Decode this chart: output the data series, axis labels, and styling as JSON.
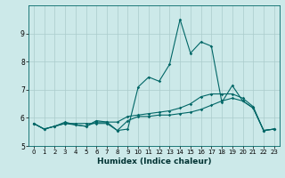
{
  "title": "",
  "xlabel": "Humidex (Indice chaleur)",
  "background_color": "#cce9e9",
  "grid_color": "#aacccc",
  "line_color": "#006666",
  "xlim": [
    -0.5,
    23.5
  ],
  "ylim": [
    5.0,
    10.0
  ],
  "yticks": [
    5,
    6,
    7,
    8,
    9
  ],
  "xticks": [
    0,
    1,
    2,
    3,
    4,
    5,
    6,
    7,
    8,
    9,
    10,
    11,
    12,
    13,
    14,
    15,
    16,
    17,
    18,
    19,
    20,
    21,
    22,
    23
  ],
  "series1_y": [
    5.8,
    5.6,
    5.7,
    5.8,
    5.8,
    5.8,
    5.8,
    5.8,
    5.55,
    5.9,
    6.05,
    6.05,
    6.1,
    6.1,
    6.15,
    6.2,
    6.3,
    6.45,
    6.6,
    6.7,
    6.6,
    6.35,
    5.55,
    5.6
  ],
  "series2_y": [
    5.8,
    5.6,
    5.7,
    5.8,
    5.75,
    5.7,
    5.85,
    5.85,
    5.85,
    6.05,
    6.1,
    6.15,
    6.2,
    6.25,
    6.35,
    6.5,
    6.75,
    6.85,
    6.85,
    6.85,
    6.7,
    6.4,
    5.55,
    5.6
  ],
  "series3_y": [
    5.8,
    5.6,
    5.7,
    5.85,
    5.75,
    5.7,
    5.9,
    5.85,
    5.55,
    5.6,
    7.1,
    7.45,
    7.3,
    7.9,
    9.5,
    8.3,
    8.7,
    8.55,
    6.55,
    7.15,
    6.6,
    6.35,
    5.55,
    5.6
  ],
  "tick_fontsize": 5.5,
  "xlabel_fontsize": 6.5,
  "marker": "D",
  "markersize": 1.8,
  "linewidth": 0.8
}
